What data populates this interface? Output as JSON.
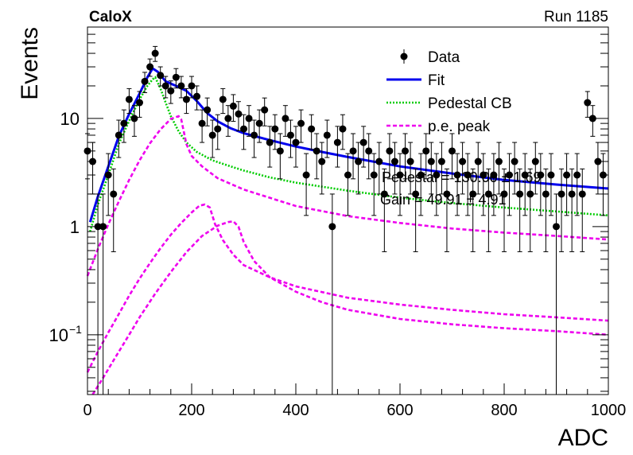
{
  "header": {
    "experiment": "CaloX",
    "run": "Run 1185"
  },
  "chart_data": {
    "type": "scatter",
    "xlabel": "ADC",
    "ylabel": "Events",
    "xlim": [
      0,
      1000
    ],
    "ylim": [
      0.028,
      70
    ],
    "yscale": "log",
    "x_ticks": [
      "0",
      "200",
      "400",
      "600",
      "800",
      "1000"
    ],
    "y_ticks": [
      {
        "value": 10,
        "label": "10"
      },
      {
        "value": 1,
        "label": "1"
      },
      {
        "value": 0.1,
        "label": "10",
        "exponent": "−1"
      }
    ],
    "grid": false,
    "legend": {
      "placement": "top-right",
      "entries": [
        {
          "label": "Data",
          "color": "#000000",
          "style": "marker"
        },
        {
          "label": "Fit",
          "color": "#0000ee",
          "style": "solid"
        },
        {
          "label": "Pedestal CB",
          "color": "#00cc00",
          "style": "dotted"
        },
        {
          "label": "p.e. peak",
          "color": "#ee00ee",
          "style": "dashed"
        }
      ]
    },
    "annotations": [
      {
        "text": "Pedestal = 130.00 ± 1.69"
      },
      {
        "text": "Gain = 49.91 ± 4.91"
      }
    ],
    "series": [
      {
        "name": "Data",
        "color": "#000000",
        "x": [
          0,
          10,
          20,
          30,
          40,
          50,
          60,
          70,
          80,
          90,
          100,
          110,
          120,
          130,
          140,
          150,
          160,
          170,
          180,
          190,
          200,
          210,
          220,
          230,
          240,
          250,
          260,
          270,
          280,
          290,
          300,
          310,
          320,
          330,
          340,
          350,
          360,
          370,
          380,
          390,
          400,
          410,
          420,
          430,
          440,
          450,
          460,
          470,
          480,
          490,
          500,
          510,
          520,
          530,
          540,
          550,
          560,
          570,
          580,
          590,
          600,
          610,
          620,
          630,
          640,
          650,
          660,
          670,
          680,
          690,
          700,
          710,
          720,
          730,
          740,
          750,
          760,
          770,
          780,
          790,
          800,
          810,
          820,
          830,
          840,
          850,
          860,
          870,
          880,
          890,
          900,
          910,
          920,
          930,
          940,
          950,
          960,
          970,
          980,
          990
        ],
        "values": [
          5,
          4,
          1,
          1,
          3,
          2,
          7,
          9,
          15,
          10,
          14,
          22,
          30,
          40,
          25,
          20,
          18,
          24,
          20,
          15,
          20,
          16,
          9,
          12,
          7,
          8,
          15,
          10,
          13,
          11,
          8,
          10,
          7,
          9,
          12,
          6,
          8,
          5,
          10,
          7,
          6,
          9,
          3,
          8,
          5,
          4,
          7,
          1,
          6,
          8,
          3,
          5,
          4,
          6,
          5,
          3,
          4,
          2,
          5,
          4,
          3,
          5,
          4,
          2,
          3,
          5,
          4,
          3,
          4,
          2,
          5,
          3,
          4,
          3,
          2,
          4,
          3,
          2,
          3,
          4,
          2,
          3,
          4,
          2,
          3,
          2,
          4,
          3,
          2,
          3,
          1,
          2,
          3,
          2,
          3,
          2,
          14,
          10,
          4,
          3
        ]
      },
      {
        "name": "Fit",
        "color": "#0000ee",
        "x": [
          5,
          20,
          40,
          60,
          80,
          100,
          115,
          125,
          135,
          150,
          170,
          190,
          210,
          230,
          250,
          275,
          300,
          350,
          400,
          450,
          500,
          600,
          700,
          800,
          900,
          1000
        ],
        "values": [
          1.1,
          1.9,
          3.6,
          6.8,
          11.0,
          17.0,
          24.0,
          29.0,
          27.0,
          22.0,
          20.0,
          18.0,
          14.5,
          11.2,
          9.4,
          8.1,
          7.3,
          6.3,
          5.5,
          4.9,
          4.4,
          3.6,
          3.1,
          2.7,
          2.45,
          2.25
        ]
      },
      {
        "name": "Pedestal CB",
        "color": "#00cc00",
        "x": [
          5,
          20,
          40,
          60,
          80,
          100,
          115,
          125,
          130,
          140,
          150,
          160,
          175,
          190,
          210,
          240,
          275,
          300,
          350,
          400,
          500,
          600,
          700,
          800,
          900,
          1000
        ],
        "values": [
          0.9,
          1.6,
          3.0,
          5.8,
          9.5,
          15.0,
          20.0,
          23.0,
          24.0,
          19.0,
          14.0,
          10.5,
          7.6,
          6.0,
          4.9,
          4.1,
          3.6,
          3.3,
          2.85,
          2.55,
          2.15,
          1.85,
          1.65,
          1.5,
          1.38,
          1.27
        ]
      },
      {
        "name": "p.e. peak",
        "color": "#ee00ee",
        "x": [
          0,
          20,
          40,
          60,
          80,
          100,
          120,
          140,
          160,
          175,
          180,
          190,
          200,
          220,
          250,
          300,
          400,
          500,
          600,
          700,
          800,
          900,
          1000
        ],
        "values": [
          0.35,
          0.62,
          1.05,
          1.7,
          2.7,
          4.1,
          5.9,
          7.9,
          9.9,
          10.5,
          9.8,
          5.8,
          4.5,
          3.6,
          2.8,
          2.2,
          1.55,
          1.25,
          1.08,
          0.96,
          0.88,
          0.82,
          0.76
        ]
      },
      {
        "name": "p.e. peak",
        "color": "#ee00ee",
        "x": [
          0,
          20,
          40,
          60,
          80,
          100,
          120,
          140,
          160,
          180,
          200,
          215,
          225,
          235,
          245,
          260,
          280,
          300,
          350,
          400,
          500,
          600,
          700,
          800,
          900,
          1000
        ],
        "values": [
          0.045,
          0.07,
          0.105,
          0.155,
          0.23,
          0.33,
          0.46,
          0.63,
          0.84,
          1.08,
          1.35,
          1.56,
          1.6,
          1.5,
          1.05,
          0.75,
          0.55,
          0.44,
          0.34,
          0.28,
          0.22,
          0.19,
          0.17,
          0.155,
          0.145,
          0.135
        ]
      },
      {
        "name": "p.e. peak",
        "color": "#ee00ee",
        "x": [
          10,
          30,
          50,
          80,
          100,
          130,
          160,
          190,
          220,
          250,
          270,
          280,
          290,
          300,
          320,
          350,
          400,
          450,
          500,
          600,
          700,
          800,
          900,
          1000
        ],
        "values": [
          0.028,
          0.04,
          0.058,
          0.1,
          0.145,
          0.24,
          0.38,
          0.58,
          0.82,
          1.02,
          1.1,
          1.12,
          1.0,
          0.72,
          0.48,
          0.34,
          0.25,
          0.2,
          0.17,
          0.14,
          0.125,
          0.115,
          0.108,
          0.1
        ]
      }
    ]
  }
}
